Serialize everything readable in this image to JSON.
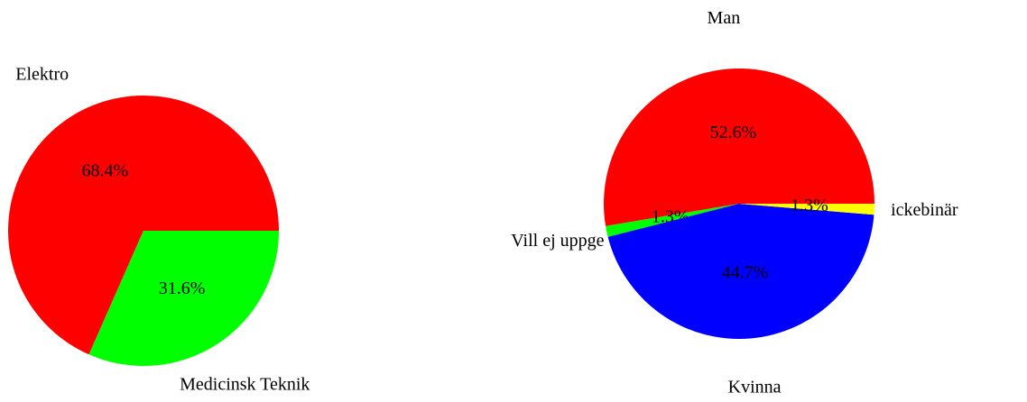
{
  "chart_data": [
    {
      "type": "pie",
      "categories": [
        "Elektro",
        "Medicinsk Teknik"
      ],
      "values": [
        68.4,
        31.6
      ],
      "value_labels": [
        "68.4%",
        "31.6%"
      ],
      "colors": [
        "#ff0000",
        "#00ff00"
      ]
    },
    {
      "type": "pie",
      "categories": [
        "Man",
        "Vill ej uppge",
        "Kvinna",
        "ickebinär"
      ],
      "values": [
        52.6,
        1.3,
        44.7,
        1.3
      ],
      "value_labels": [
        "52.6%",
        "1.3%",
        "44.7%",
        "1.3%"
      ],
      "colors": [
        "#ff0000",
        "#00ff00",
        "#0000ff",
        "#ffff00"
      ]
    }
  ]
}
